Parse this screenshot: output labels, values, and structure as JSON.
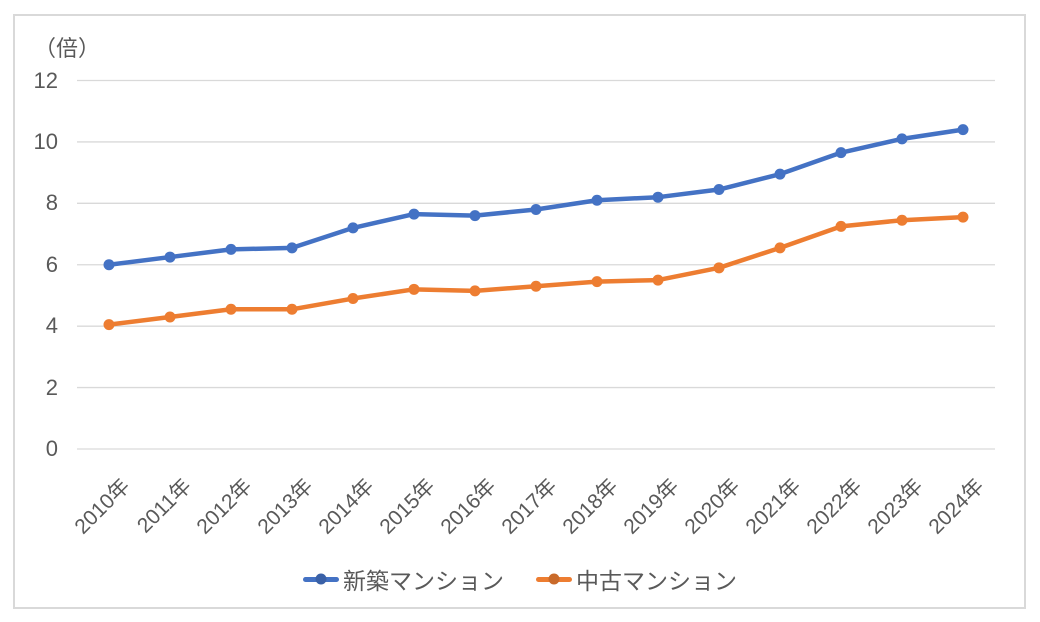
{
  "chart_data": {
    "type": "line",
    "title": "",
    "unit_label": "（倍）",
    "categories": [
      "2010年",
      "2011年",
      "2012年",
      "2013年",
      "2014年",
      "2015年",
      "2016年",
      "2017年",
      "2018年",
      "2019年",
      "2020年",
      "2021年",
      "2022年",
      "2023年",
      "2024年"
    ],
    "series": [
      {
        "name": "新築マンション",
        "color": "#4472C4",
        "values": [
          6.0,
          6.25,
          6.5,
          6.55,
          7.2,
          7.65,
          7.6,
          7.8,
          8.1,
          8.2,
          8.45,
          8.95,
          9.65,
          10.1,
          10.4
        ]
      },
      {
        "name": "中古マンション",
        "color": "#ED7D31",
        "values": [
          4.05,
          4.3,
          4.55,
          4.55,
          4.9,
          5.2,
          5.15,
          5.3,
          5.45,
          5.5,
          5.9,
          6.55,
          7.25,
          7.45,
          7.55
        ]
      }
    ],
    "y_ticks": [
      0,
      2,
      4,
      6,
      8,
      10,
      12
    ],
    "ylim": [
      0,
      12
    ],
    "grid": true,
    "legend_position": "bottom",
    "colors": {
      "axis_text": "#595959",
      "gridline": "#D9D9D9",
      "frame_border": "#D9D9D9",
      "background": "#FFFFFF"
    }
  }
}
